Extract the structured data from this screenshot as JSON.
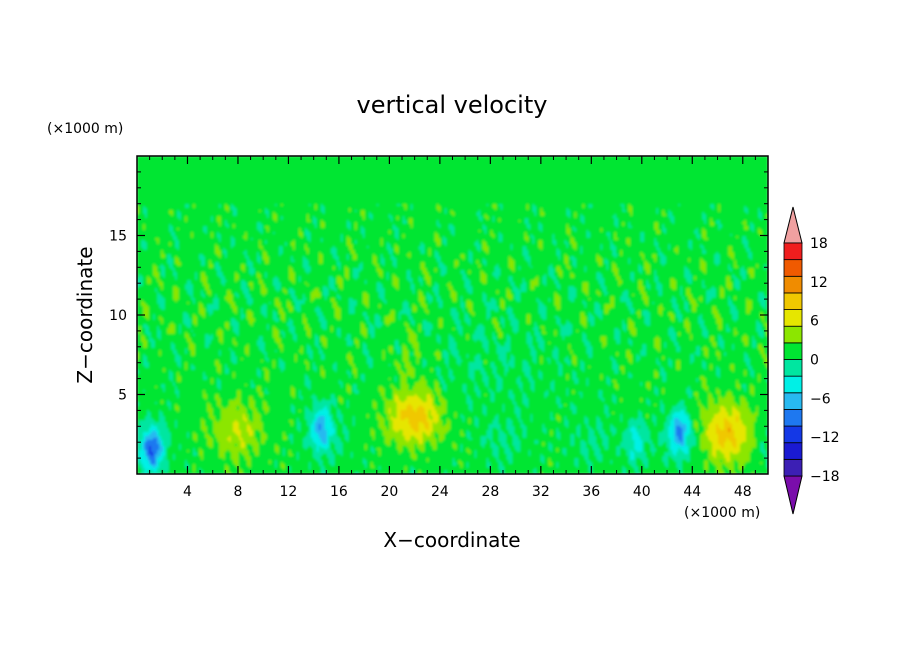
{
  "chart_data": {
    "type": "heatmap",
    "title": "vertical velocity",
    "xlabel": "X−coordinate",
    "ylabel": "Z−coordinate",
    "x_unit": "(×1000 m)",
    "y_unit": "(×1000 m)",
    "xlim": [
      0,
      50
    ],
    "ylim": [
      0,
      20
    ],
    "x_ticks": [
      4,
      8,
      12,
      16,
      20,
      24,
      28,
      32,
      36,
      40,
      44,
      48
    ],
    "x_tick_labels": [
      "4",
      "8",
      "12",
      "16",
      "20",
      "24",
      "28",
      "32",
      "36",
      "40",
      "44",
      "48"
    ],
    "y_ticks": [
      5,
      10,
      15
    ],
    "y_tick_labels": [
      "5",
      "10",
      "15"
    ],
    "colorbar": {
      "levels": [
        -21,
        -18,
        -15,
        -12,
        -9,
        -6,
        -3,
        0,
        3,
        6,
        9,
        12,
        15,
        18,
        21
      ],
      "tick_values": [
        18,
        12,
        6,
        0,
        -6,
        -12,
        -18
      ],
      "tick_labels": [
        "18",
        "12",
        "6",
        "0",
        "−6",
        "−12",
        "−18"
      ],
      "colors": [
        "#7a0dab",
        "#3c1fb4",
        "#1a1ad2",
        "#1438e6",
        "#1e78f0",
        "#28b9f0",
        "#00f0e6",
        "#00e6a0",
        "#00e632",
        "#8ce600",
        "#e6e600",
        "#f0c800",
        "#f08c00",
        "#f05a00",
        "#f01e1e",
        "#f0a0a0"
      ],
      "extend": "both"
    },
    "features": [
      {
        "kind": "updraft",
        "x": 22,
        "z": 3.4,
        "peak": 10
      },
      {
        "kind": "updraft",
        "x": 46.8,
        "z": 2.6,
        "peak": 9
      },
      {
        "kind": "updraft",
        "x": 8,
        "z": 2.5,
        "peak": 6
      },
      {
        "kind": "downdraft",
        "x": 1.2,
        "z": 1.5,
        "peak": -12
      },
      {
        "kind": "downdraft",
        "x": 14.6,
        "z": 3,
        "peak": -9
      },
      {
        "kind": "downdraft",
        "x": 43,
        "z": 2.7,
        "peak": -10
      },
      {
        "kind": "downdraft",
        "x": 39.5,
        "z": 2,
        "peak": -6
      }
    ]
  }
}
